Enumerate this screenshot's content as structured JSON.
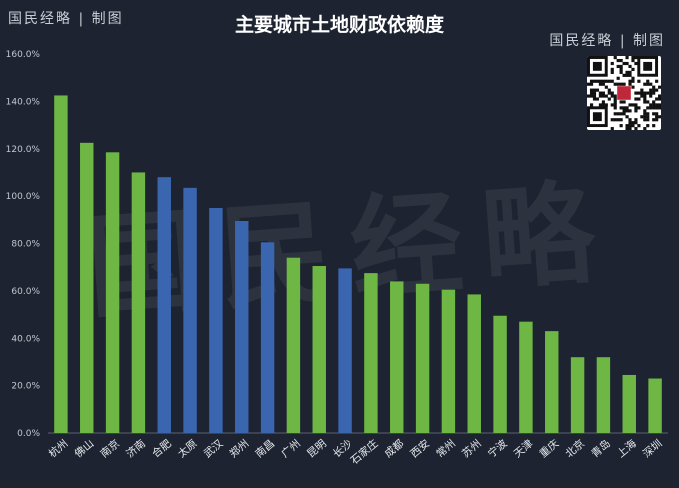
{
  "brand": {
    "top_left": "国民经略 | 制图",
    "top_right": "国民经略 | 制图",
    "watermark": "国民经略"
  },
  "chart_data": {
    "type": "bar",
    "title": "主要城市土地财政依赖度",
    "xlabel": "",
    "ylabel": "",
    "ylim": [
      0,
      160
    ],
    "yticks": [
      "0.0%",
      "20.0%",
      "40.0%",
      "60.0%",
      "80.0%",
      "100.0%",
      "120.0%",
      "140.0%",
      "160.0%"
    ],
    "grid": false,
    "categories": [
      "杭州",
      "佛山",
      "南京",
      "济南",
      "合肥",
      "太原",
      "武汉",
      "郑州",
      "南昌",
      "广州",
      "昆明",
      "长沙",
      "石家庄",
      "成都",
      "西安",
      "常州",
      "苏州",
      "宁波",
      "天津",
      "重庆",
      "北京",
      "青岛",
      "上海",
      "深圳"
    ],
    "values": [
      142.5,
      122.5,
      118.5,
      110,
      108,
      103.5,
      95,
      89.5,
      80.5,
      74,
      70.5,
      69.5,
      67.5,
      64,
      63,
      60.5,
      58.5,
      49.5,
      47,
      43,
      32,
      32,
      24.5,
      23
    ],
    "colors": [
      "green",
      "green",
      "green",
      "green",
      "blue",
      "blue",
      "blue",
      "blue",
      "blue",
      "green",
      "green",
      "blue",
      "green",
      "green",
      "green",
      "green",
      "green",
      "green",
      "green",
      "green",
      "green",
      "green",
      "green",
      "green"
    ],
    "palette": {
      "green": "#6fb744",
      "blue": "#3a66b0"
    }
  }
}
